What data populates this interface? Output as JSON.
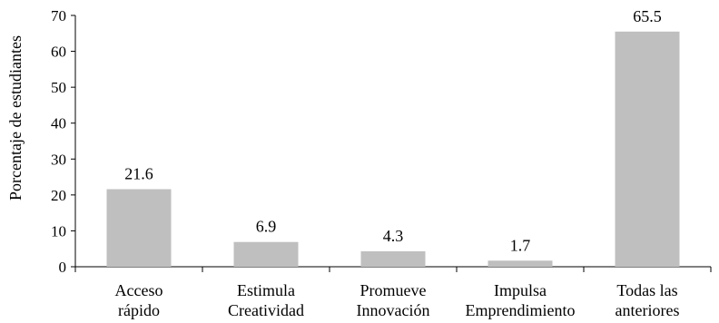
{
  "chart_data": {
    "type": "bar",
    "categories": [
      [
        "Acceso",
        "rápido"
      ],
      [
        "Estimula",
        "Creatividad"
      ],
      [
        "Promueve",
        "Innovación"
      ],
      [
        "Impulsa",
        "Emprendimiento"
      ],
      [
        "Todas las",
        "anteriores"
      ]
    ],
    "values": [
      21.6,
      6.9,
      4.3,
      1.7,
      65.5
    ],
    "data_labels": [
      "21.6",
      "6.9",
      "4.3",
      "1.7",
      "65.5"
    ],
    "title": "",
    "xlabel": "",
    "ylabel": "Porcentaje de estudiantes",
    "ylim": [
      0,
      70
    ],
    "yticks": [
      0,
      10,
      20,
      30,
      40,
      50,
      60,
      70
    ],
    "grid": false,
    "bar_color": "#bfbfbf",
    "axis_color": "#000000"
  }
}
